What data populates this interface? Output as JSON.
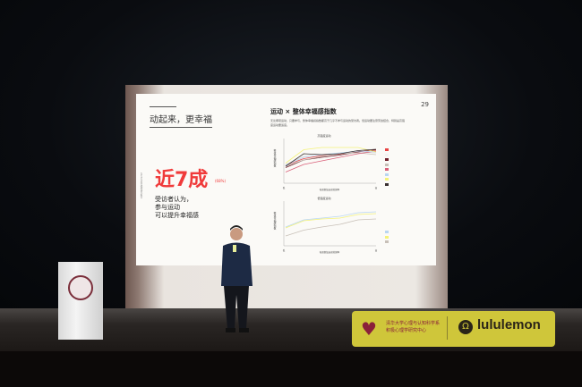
{
  "slide": {
    "title": "动起来，更幸福",
    "headline": "近7成",
    "headline_pct": "(68%)",
    "subtext": [
      "受访者认为，",
      "参与运动",
      "可以提升幸福感"
    ],
    "side_note": "2023年度幸福感研究报告",
    "page_number": "29",
    "chart_heading": "运动 × 整体幸福感指数",
    "chart_desc": "无论哪项运动，只要参与，整体幸福感指数都高于几乎不参与运动的受访者。但运动要注意劳逸结合，特别是高强度运动要适度。",
    "charts": [
      {
        "title": "高强度运动",
        "ylabel": "整体幸福感指数",
        "xlabel": "每周参加运动的频率",
        "x_ticks": [
          "低",
          "高"
        ],
        "series": [
          {
            "color": "#e84545",
            "values": [
              40,
              55,
              62,
              65,
              70,
              74
            ]
          },
          {
            "color": "#f2f2f2",
            "values": [
              42,
              60,
              63,
              66,
              70,
              68
            ]
          },
          {
            "color": "#6e1f2a",
            "values": [
              35,
              52,
              58,
              63,
              70,
              75
            ]
          },
          {
            "color": "#c8c0b8",
            "values": [
              38,
              52,
              60,
              66,
              68,
              64
            ]
          },
          {
            "color": "#d9607a",
            "values": [
              25,
              42,
              50,
              58,
              66,
              72
            ]
          },
          {
            "color": "#b9d6f2",
            "values": [
              40,
              58,
              64,
              68,
              72,
              70
            ]
          },
          {
            "color": "#f4f27a",
            "values": [
              45,
              75,
              80,
              80,
              80,
              70
            ]
          },
          {
            "color": "#3a3030",
            "values": [
              38,
              66,
              64,
              66,
              73,
              76
            ]
          }
        ]
      },
      {
        "title": "低强度运动",
        "ylabel": "整体幸福感指数",
        "xlabel": "每周参加运动的频率",
        "x_ticks": [
          "低",
          "高"
        ],
        "series": [
          {
            "color": "#b9d6f2",
            "values": [
              42,
              58,
              62,
              66,
              74,
              76
            ]
          },
          {
            "color": "#f4f27a",
            "values": [
              40,
              56,
              60,
              62,
              70,
              72
            ]
          },
          {
            "color": "#c8c0b8",
            "values": [
              22,
              35,
              42,
              48,
              58,
              60
            ]
          }
        ]
      }
    ]
  },
  "podium": {
    "seal": "清华大学"
  },
  "banner": {
    "org_line1": "清华大学心理与认知科学系",
    "org_line2": "积极心理学研究中心",
    "brand": "lululemon"
  }
}
